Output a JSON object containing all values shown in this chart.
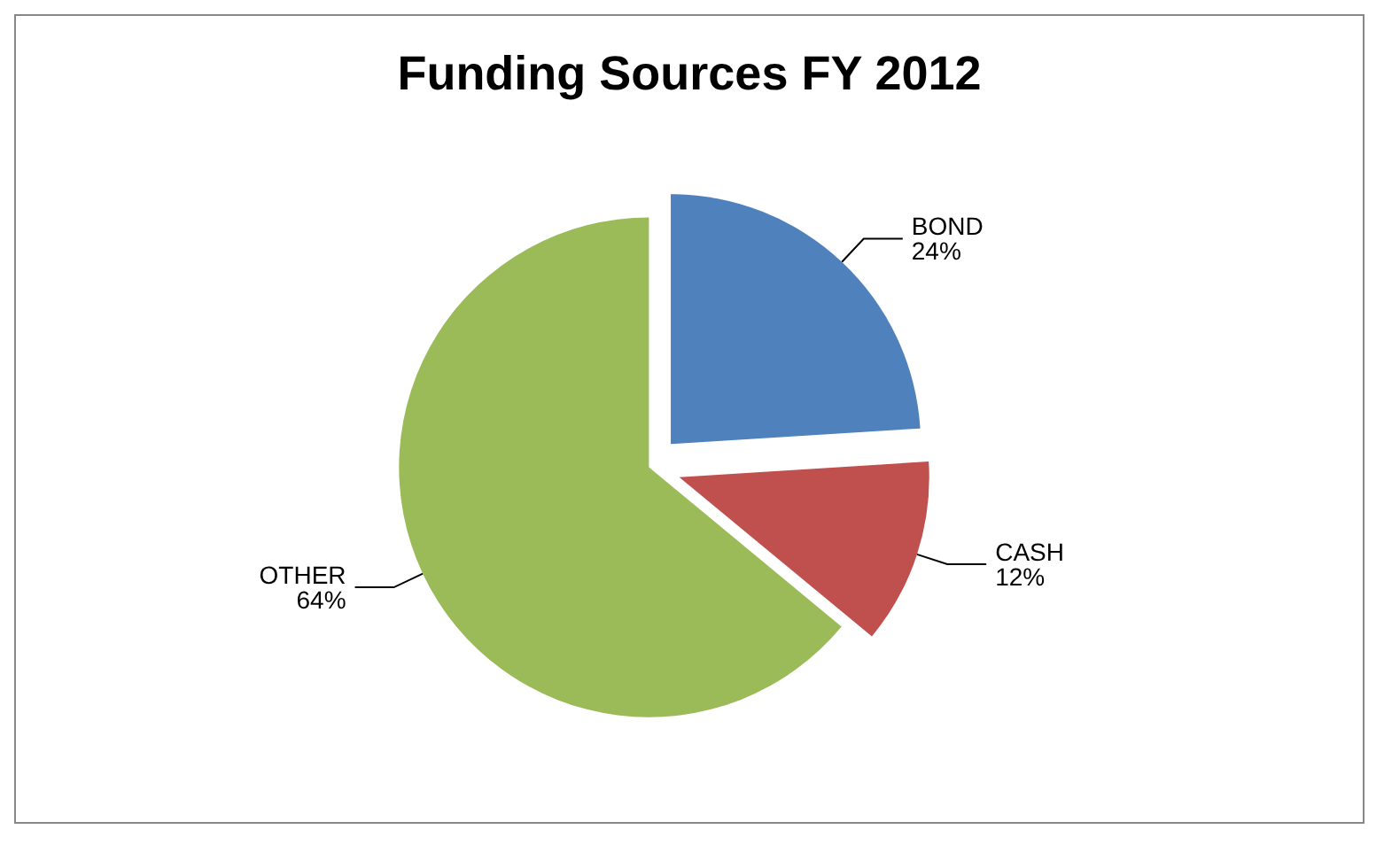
{
  "chart_data": {
    "type": "pie",
    "title": "Funding Sources FY 2012",
    "categories": [
      "BOND",
      "CASH",
      "OTHER"
    ],
    "values": [
      24,
      12,
      64
    ],
    "value_labels": [
      "24%",
      "12%",
      "64%"
    ],
    "colors": [
      "#4f81bd",
      "#c0504d",
      "#9bbb59"
    ]
  }
}
